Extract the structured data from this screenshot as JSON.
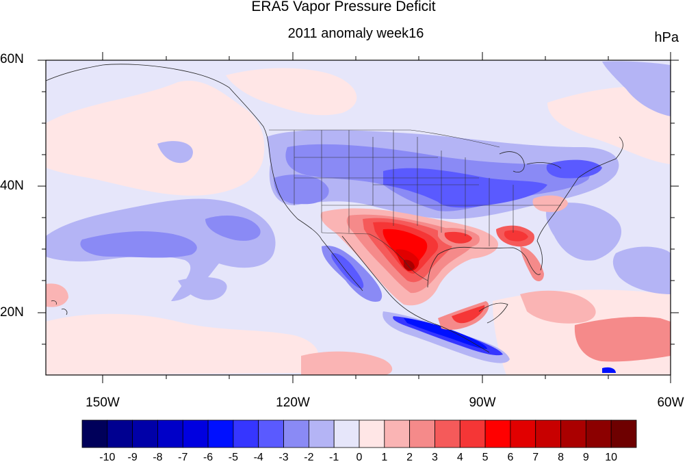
{
  "title": "ERA5 Vapor Pressure Deficit",
  "subtitle": "2011 anomaly week16",
  "units": "hPa",
  "lat_labels": [
    "60N",
    "40N",
    "20N"
  ],
  "lon_labels": [
    "150W",
    "120W",
    "90W",
    "60W"
  ],
  "colorbar": {
    "labels": [
      "-10",
      "-9",
      "-8",
      "-7",
      "-6",
      "-5",
      "-4",
      "-3",
      "-2",
      "-1",
      "0",
      "1",
      "2",
      "3",
      "4",
      "5",
      "6",
      "7",
      "8",
      "9",
      "10"
    ],
    "colors": [
      "#00005a",
      "#000090",
      "#0000a8",
      "#0000c8",
      "#0000e0",
      "#0010ff",
      "#3636ff",
      "#5a5aff",
      "#8a8af5",
      "#b4b4f5",
      "#e6e6fa",
      "#ffe6e6",
      "#fab4b4",
      "#f58a8a",
      "#f55a5a",
      "#f53636",
      "#ff0000",
      "#e10000",
      "#c80000",
      "#aa0000",
      "#8c0000",
      "#6e0000"
    ]
  },
  "map": {
    "lon_range": [
      -160,
      -60
    ],
    "lat_range": [
      10,
      60
    ],
    "background_level": "-1 to 0 (light lavender)"
  }
}
